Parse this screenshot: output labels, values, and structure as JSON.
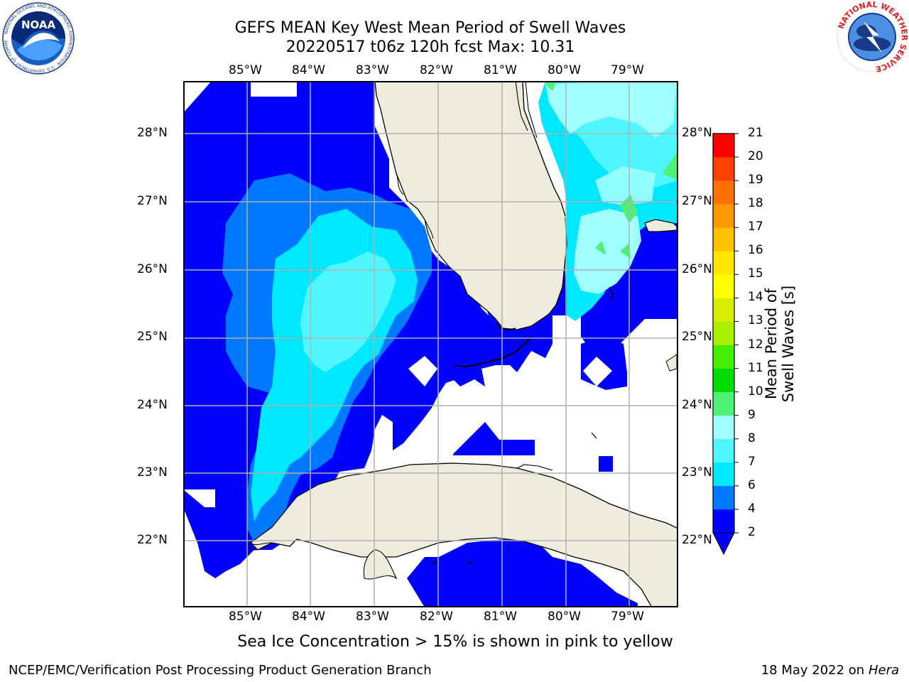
{
  "title_line1": "GEFS MEAN Key West Mean Period of Swell Waves",
  "title_line2": "20220517 t06z 120h fcst   Max: 10.31",
  "lon_labels": [
    "85°W",
    "84°W",
    "83°W",
    "82°W",
    "81°W",
    "80°W",
    "79°W"
  ],
  "lat_labels": [
    "28°N",
    "27°N",
    "26°N",
    "25°N",
    "24°N",
    "23°N",
    "22°N"
  ],
  "colorbar": {
    "title": "Mean Period of Swell Waves [s]",
    "ticks": [
      "2",
      "4",
      "6",
      "7",
      "8",
      "9",
      "10",
      "11",
      "12",
      "13",
      "14",
      "15",
      "16",
      "17",
      "18",
      "19",
      "20",
      "21"
    ],
    "tick_labels_shown": [
      "21",
      "20",
      "19",
      "18",
      "17",
      "16",
      "15",
      "14",
      "13",
      "12",
      "11",
      "10",
      "9",
      "8",
      "7",
      "6",
      "4",
      "2"
    ],
    "colors": [
      "#0000ff",
      "#0078ff",
      "#00e8ff",
      "#4ff6ff",
      "#a0ffff",
      "#50f078",
      "#00dd00",
      "#44ee00",
      "#aaee00",
      "#d8ee00",
      "#ffff00",
      "#ffe600",
      "#ffc000",
      "#ff9800",
      "#ff7000",
      "#ff4000",
      "#ff0000"
    ]
  },
  "note": "Sea Ice Concentration > 15% is shown in pink to yellow",
  "footer_left": "NCEP/EMC/Verification Post Processing Product Generation Branch",
  "footer_right_date": "18 May 2022 on",
  "footer_right_host": "Hera",
  "logos": {
    "left": {
      "name": "NOAA",
      "ring_text": "NATIONAL OCEANIC AND ATMOSPHERIC ADMINISTRATION · U.S. DEPARTMENT OF COMMERCE"
    },
    "right": {
      "ring_text": "NATIONAL WEATHER SERVICE"
    }
  },
  "land_color": "#eeecdc"
}
